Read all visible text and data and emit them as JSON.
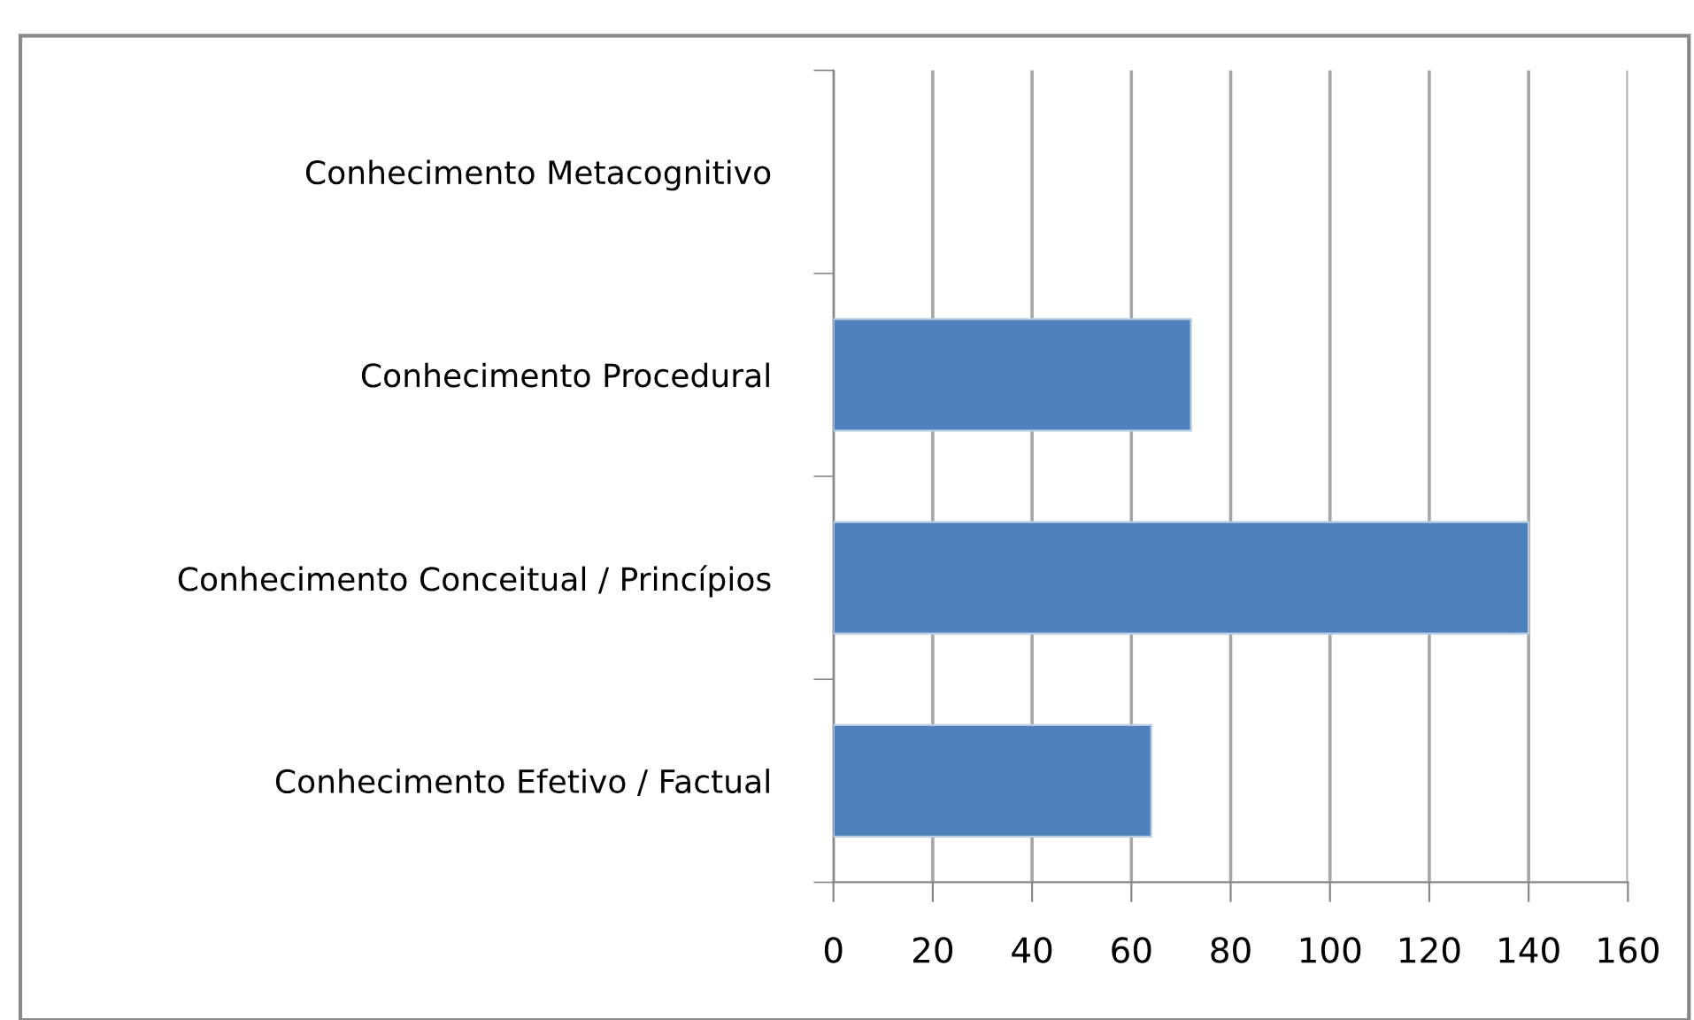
{
  "chart_data": {
    "type": "bar",
    "orientation": "horizontal",
    "categories": [
      "Conhecimento Metacognitivo",
      "Conhecimento Procedural",
      "Conhecimento Conceitual / Princípios",
      "Conhecimento Efetivo / Factual"
    ],
    "values": [
      null,
      72,
      140,
      64
    ],
    "color": "#4f81bd",
    "xlim": [
      0,
      160
    ],
    "xticks": [
      0,
      20,
      40,
      60,
      80,
      100,
      120,
      140,
      160
    ],
    "grid": "x",
    "legend": false
  }
}
